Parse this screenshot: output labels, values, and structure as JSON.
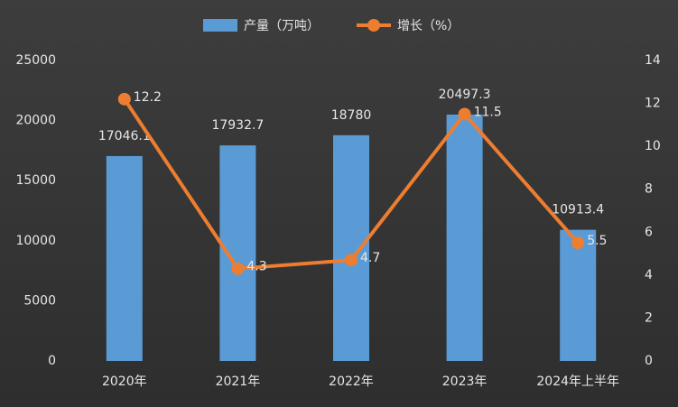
{
  "chart_data": {
    "type": "bar_line",
    "categories": [
      "2020年",
      "2021年",
      "2022年",
      "2023年",
      "2024年上半年"
    ],
    "series": [
      {
        "name": "产量（万吨）",
        "color": "#5b9bd5",
        "type": "bar",
        "values": [
          17046.1,
          17932.7,
          18780,
          20497.3,
          10913.4
        ]
      },
      {
        "name": "增长（%）",
        "color": "#ed7d31",
        "type": "line",
        "axis": "y2",
        "values": [
          12.2,
          4.3,
          4.7,
          11.5,
          5.5
        ]
      }
    ],
    "ylim": [
      0,
      25000
    ],
    "yticks": [
      0,
      5000,
      10000,
      15000,
      20000,
      25000
    ],
    "y2lim": [
      0,
      14
    ],
    "y2ticks": [
      0,
      2,
      4,
      6,
      8,
      10,
      12,
      14
    ],
    "grid": false
  }
}
